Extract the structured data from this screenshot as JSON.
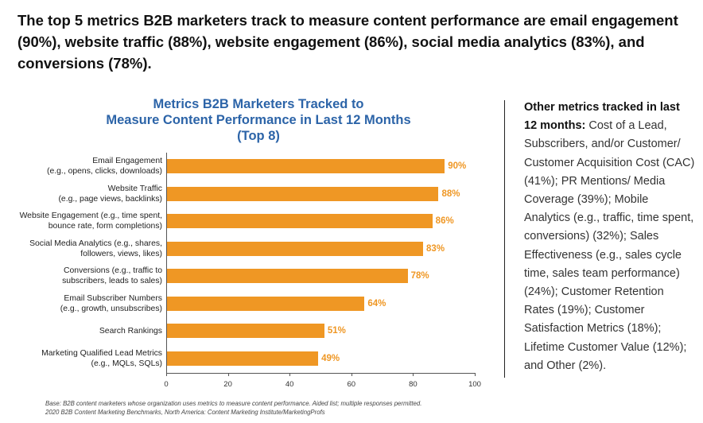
{
  "headline": "The top 5 metrics B2B marketers track to measure content performance are email engagement (90%), website traffic (88%), website engagement (86%), social media analytics (83%), and conversions (78%).",
  "side_panel": {
    "bold_text": "Other metrics tracked in last 12 months:",
    "body_text": " Cost of a Lead, Subscribers, and/or Customer/ Customer Acquisition Cost (CAC) (41%); PR Mentions/ Media Coverage (39%); Mobile Analytics (e.g., traffic, time spent, conversions) (32%); Sales Effectiveness (e.g., sales cycle time, sales team performance) (24%); Customer Retention Rates (19%); Customer Satisfaction Metrics (18%); Lifetime Customer Value (12%); and Other (2%)."
  },
  "footnote": {
    "line1": "Base: B2B content marketers whose organization uses metrics to measure content performance. Aided list; multiple responses permitted.",
    "line2": "2020 B2B Content Marketing Benchmarks, North America: Content Marketing Institute/MarketingProfs"
  },
  "colors": {
    "bar": "#ef9724",
    "title": "#2c64a8"
  },
  "chart_data": {
    "type": "bar",
    "orientation": "horizontal",
    "title_lines": [
      "Metrics B2B Marketers Tracked to",
      "Measure Content Performance in Last 12 Months",
      "(Top 8)"
    ],
    "categories": [
      [
        "Email Engagement",
        "(e.g., opens, clicks, downloads)"
      ],
      [
        "Website Traffic",
        "(e.g., page views, backlinks)"
      ],
      [
        "Website Engagement (e.g., time spent,",
        "bounce rate, form completions)"
      ],
      [
        "Social Media Analytics (e.g., shares,",
        "followers, views, likes)"
      ],
      [
        "Conversions (e.g., traffic to",
        "subscribers, leads to sales)"
      ],
      [
        "Email Subscriber Numbers",
        "(e.g., growth, unsubscribes)"
      ],
      [
        "Search Rankings"
      ],
      [
        "Marketing Qualified Lead Metrics",
        "(e.g., MQLs, SQLs)"
      ]
    ],
    "values": [
      90,
      88,
      86,
      83,
      78,
      64,
      51,
      49
    ],
    "value_labels": [
      "90%",
      "88%",
      "86%",
      "83%",
      "78%",
      "64%",
      "51%",
      "49%"
    ],
    "xlim": [
      0,
      100
    ],
    "xticks": [
      0,
      20,
      40,
      60,
      80,
      100
    ],
    "grid": false,
    "legend": "none"
  }
}
